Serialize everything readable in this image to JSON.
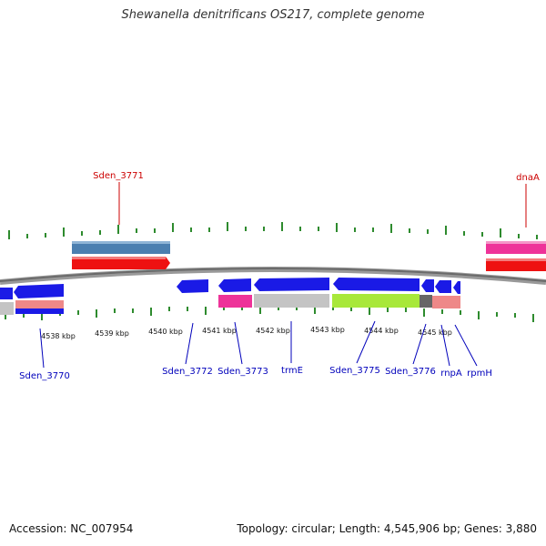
{
  "title": "Shewanella denitrificans OS217, complete genome",
  "footer": {
    "accession": "Accession: NC_007954",
    "summary": "Topology: circular; Length: 4,545,906 bp; Genes: 3,880"
  },
  "colors": {
    "backbone": "#777777",
    "tick": "#2e8b2e",
    "forward_label": "#cc0000",
    "reverse_label": "#0000bb",
    "cds_forward": "#ee1111",
    "gene_forward": "#4b7fb0",
    "cds_reverse": "#1a1ae6",
    "misc_pink": "#ee3399",
    "misc_grey": "#c4c4c4",
    "misc_green": "#a8e83a",
    "misc_salmon": "#ee8888"
  },
  "tick_labels": [
    "4538 kbp",
    "4539 kbp",
    "4540 kbp",
    "4541 kbp",
    "4542 kbp",
    "4543 kbp",
    "4544 kbp",
    "4545 kbp"
  ],
  "forward_labels": [
    "Sden_3771",
    "dnaA"
  ],
  "reverse_labels": [
    "Sden_3770",
    "Sden_3772",
    "Sden_3773",
    "trmE",
    "Sden_3775",
    "Sden_3776",
    "rnpA",
    "rpmH"
  ]
}
